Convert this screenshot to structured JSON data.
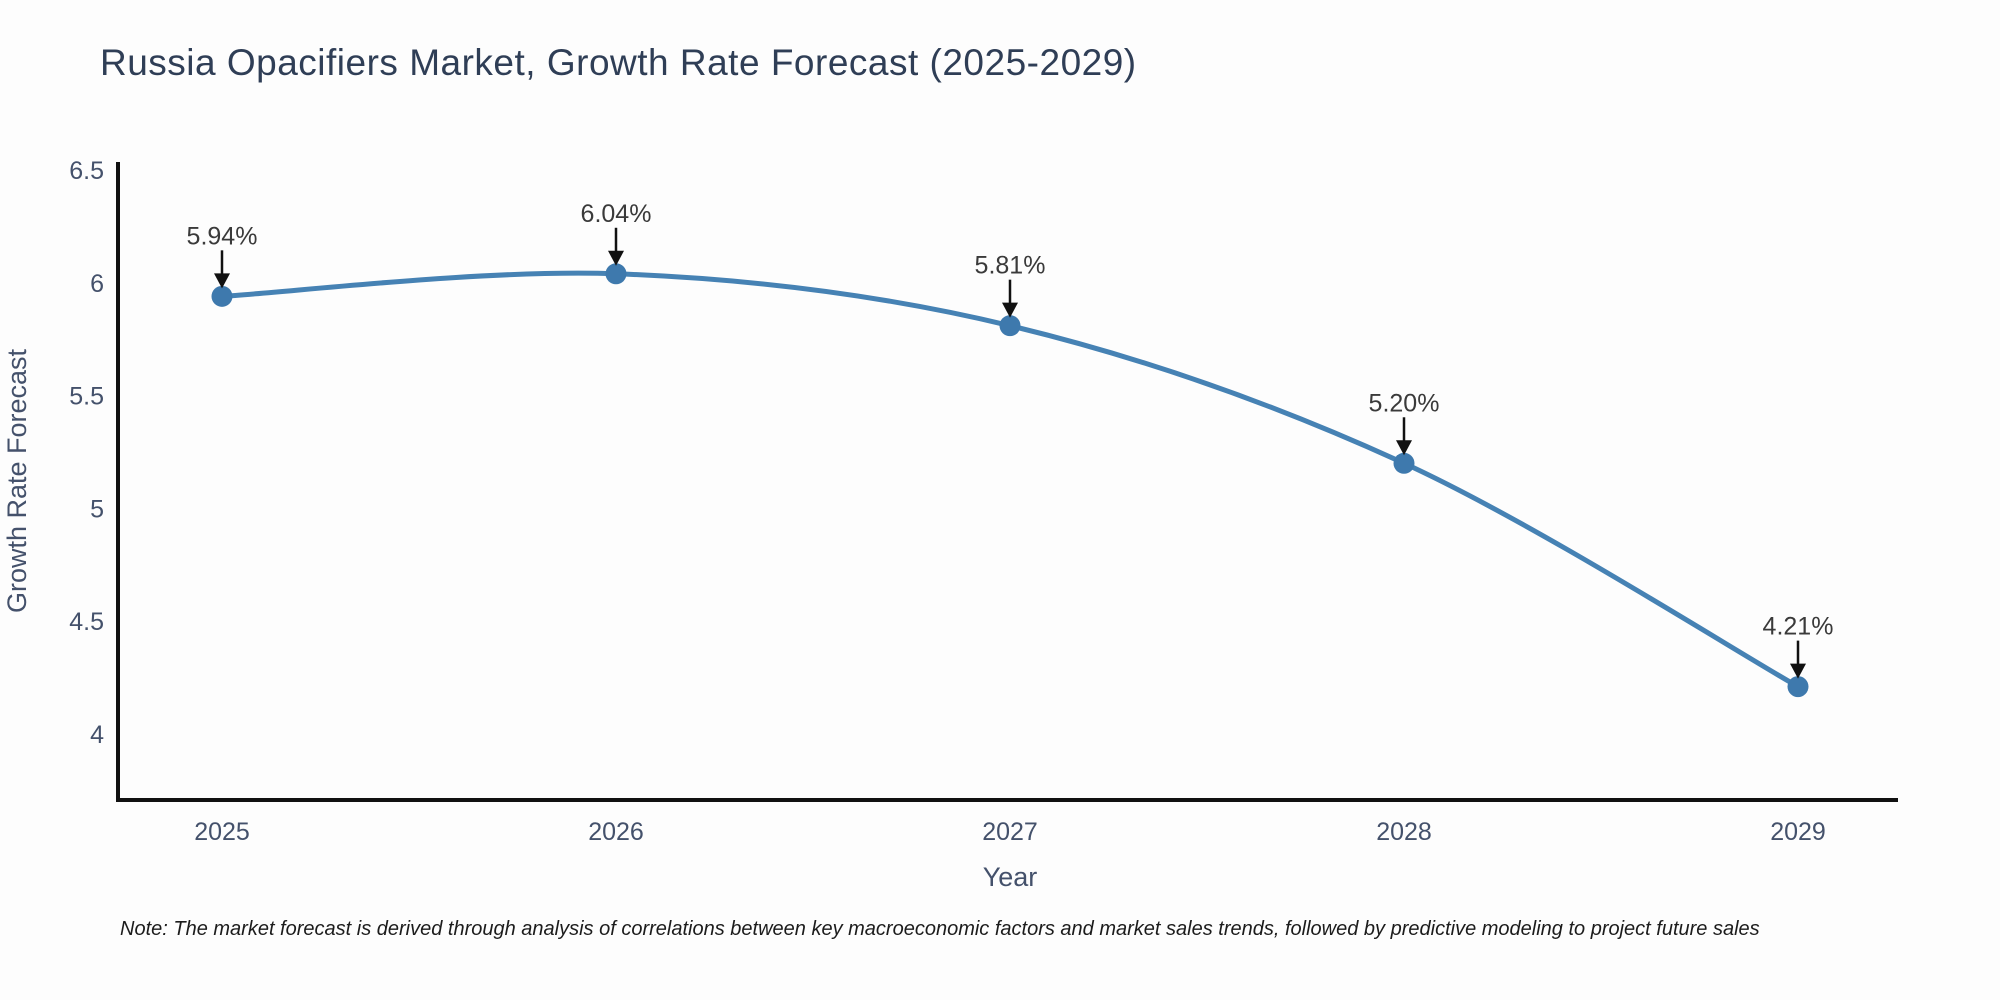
{
  "title": "Russia Opacifiers Market, Growth Rate Forecast (2025-2029)",
  "note": "Note: The market forecast is derived through analysis of correlations between key macroeconomic factors and market sales trends, followed by predictive modeling to project future sales",
  "chart_data": {
    "type": "line",
    "title": "Russia Opacifiers Market, Growth Rate Forecast (2025-2029)",
    "categories": [
      "2025",
      "2026",
      "2027",
      "2028",
      "2029"
    ],
    "series": [
      {
        "name": "Growth Rate Forecast",
        "values": [
          5.94,
          6.04,
          5.81,
          5.2,
          4.21
        ],
        "point_labels": [
          "5.94%",
          "6.04%",
          "5.81%",
          "5.20%",
          "4.21%"
        ]
      }
    ],
    "xlabel": "Year",
    "ylabel": "Growth Rate Forecast",
    "y_ticks": [
      "6.5",
      "6",
      "5.5",
      "5",
      "4.5",
      "4"
    ],
    "y_tick_values": [
      6.5,
      6,
      5.5,
      5,
      4.5,
      4
    ],
    "ylim": [
      3.7,
      6.53
    ],
    "grid": false,
    "curve": "spline",
    "legend": "none",
    "annotations": "arrow-down-to-point",
    "colors": {
      "line": "#4682b4",
      "marker": "#3e79ad",
      "axis": "#111111",
      "tick_text": "#44516b",
      "axis_title_text": "#44516b",
      "annotation_text": "#3a3a3a",
      "arrow": "#111111"
    }
  }
}
